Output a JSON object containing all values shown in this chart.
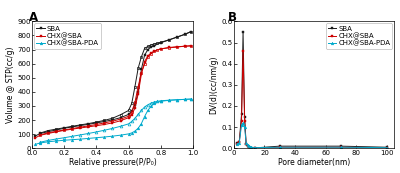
{
  "panel_A": {
    "title": "A",
    "xlabel": "Relative pressure(P/P₀)",
    "ylabel": "Volume @ STP(cc/g)",
    "ylim": [
      0,
      900
    ],
    "xlim": [
      0.0,
      1.0
    ],
    "yticks": [
      0,
      100,
      200,
      300,
      400,
      500,
      600,
      700,
      800,
      900
    ],
    "xticks": [
      0.0,
      0.2,
      0.4,
      0.6,
      0.8,
      1.0
    ],
    "series": {
      "SBA": {
        "color": "#1a1a1a",
        "marker": "s",
        "adsorption_x": [
          0.02,
          0.05,
          0.1,
          0.15,
          0.2,
          0.25,
          0.3,
          0.35,
          0.4,
          0.45,
          0.5,
          0.55,
          0.6,
          0.62,
          0.64,
          0.66,
          0.68,
          0.7,
          0.72,
          0.74,
          0.76,
          0.8,
          0.85,
          0.9,
          0.95,
          0.99
        ],
        "adsorption_y": [
          88,
          105,
          118,
          130,
          142,
          152,
          161,
          170,
          180,
          190,
          202,
          217,
          240,
          262,
          308,
          400,
          560,
          660,
          700,
          718,
          728,
          748,
          768,
          788,
          808,
          828
        ],
        "desorption_x": [
          0.99,
          0.95,
          0.9,
          0.85,
          0.8,
          0.78,
          0.76,
          0.74,
          0.72,
          0.7,
          0.68,
          0.66,
          0.64,
          0.62,
          0.6,
          0.55,
          0.5,
          0.45,
          0.4,
          0.35,
          0.3,
          0.25,
          0.2,
          0.15,
          0.1,
          0.05
        ],
        "desorption_y": [
          828,
          808,
          788,
          768,
          752,
          746,
          740,
          733,
          722,
          708,
          648,
          568,
          438,
          318,
          268,
          238,
          213,
          198,
          186,
          175,
          166,
          156,
          146,
          136,
          126,
          108
        ]
      },
      "CHX@SBA": {
        "color": "#cc0000",
        "marker": "s",
        "adsorption_x": [
          0.02,
          0.05,
          0.1,
          0.15,
          0.2,
          0.25,
          0.3,
          0.35,
          0.4,
          0.45,
          0.5,
          0.55,
          0.6,
          0.62,
          0.64,
          0.66,
          0.68,
          0.7,
          0.72,
          0.74,
          0.76,
          0.8,
          0.85,
          0.9,
          0.95,
          0.99
        ],
        "adsorption_y": [
          75,
          92,
          105,
          117,
          127,
          136,
          144,
          152,
          160,
          169,
          180,
          195,
          217,
          238,
          285,
          385,
          525,
          615,
          655,
          675,
          690,
          705,
          715,
          720,
          724,
          727
        ],
        "desorption_x": [
          0.99,
          0.95,
          0.9,
          0.85,
          0.8,
          0.78,
          0.76,
          0.74,
          0.72,
          0.7,
          0.68,
          0.66,
          0.64,
          0.62,
          0.6,
          0.55,
          0.5,
          0.45,
          0.4,
          0.35,
          0.3,
          0.25,
          0.2,
          0.15,
          0.1,
          0.05
        ],
        "desorption_y": [
          727,
          724,
          718,
          712,
          705,
          698,
          687,
          672,
          647,
          597,
          537,
          437,
          327,
          257,
          227,
          207,
          192,
          180,
          169,
          159,
          150,
          140,
          130,
          120,
          110,
          95
        ]
      },
      "CHX@SBA-PDA": {
        "color": "#00aacc",
        "marker": "^",
        "adsorption_x": [
          0.02,
          0.05,
          0.1,
          0.15,
          0.2,
          0.25,
          0.3,
          0.35,
          0.4,
          0.45,
          0.5,
          0.55,
          0.6,
          0.62,
          0.64,
          0.66,
          0.68,
          0.7,
          0.72,
          0.74,
          0.76,
          0.8,
          0.85,
          0.9,
          0.95,
          0.99
        ],
        "adsorption_y": [
          28,
          38,
          46,
          52,
          57,
          61,
          65,
          70,
          75,
          80,
          86,
          93,
          102,
          109,
          122,
          142,
          175,
          225,
          268,
          298,
          318,
          333,
          340,
          344,
          347,
          349
        ],
        "desorption_x": [
          0.99,
          0.95,
          0.9,
          0.85,
          0.8,
          0.78,
          0.76,
          0.74,
          0.72,
          0.7,
          0.68,
          0.66,
          0.64,
          0.62,
          0.6,
          0.55,
          0.5,
          0.45,
          0.4,
          0.35,
          0.3,
          0.25,
          0.2,
          0.15,
          0.1,
          0.05
        ],
        "desorption_y": [
          349,
          347,
          344,
          341,
          337,
          333,
          328,
          320,
          308,
          293,
          268,
          240,
          213,
          190,
          173,
          156,
          141,
          128,
          116,
          105,
          95,
          85,
          75,
          66,
          56,
          43
        ]
      }
    }
  },
  "panel_B": {
    "title": "B",
    "xlabel": "Pore diameter(nm)",
    "ylabel": "DV(d)(cc/nm/g)",
    "ylim": [
      0,
      0.6
    ],
    "xlim": [
      0,
      105
    ],
    "yticks": [
      0.0,
      0.1,
      0.2,
      0.3,
      0.4,
      0.5,
      0.6
    ],
    "xticks": [
      0,
      20,
      40,
      60,
      80,
      100
    ],
    "series": {
      "SBA": {
        "color": "#1a1a1a",
        "marker": "s",
        "x": [
          2.0,
          3.5,
          5.0,
          6.0,
          7.0,
          8.0,
          9.0,
          10.0,
          11.5,
          14.0,
          30.0,
          70.0,
          100.0
        ],
        "y": [
          0.025,
          0.03,
          0.16,
          0.55,
          0.15,
          0.02,
          0.01,
          0.005,
          0.003,
          0.002,
          0.01,
          0.01,
          0.005
        ]
      },
      "CHX@SBA": {
        "color": "#cc0000",
        "marker": "s",
        "x": [
          2.0,
          3.5,
          5.0,
          6.0,
          7.0,
          8.0,
          9.0,
          10.0,
          11.5,
          14.0,
          30.0,
          70.0,
          100.0
        ],
        "y": [
          0.022,
          0.028,
          0.13,
          0.46,
          0.13,
          0.02,
          0.01,
          0.005,
          0.003,
          0.002,
          0.005,
          0.005,
          0.003
        ]
      },
      "CHX@SBA-PDA": {
        "color": "#00aacc",
        "marker": "^",
        "x": [
          2.0,
          3.5,
          5.0,
          6.0,
          7.0,
          8.0,
          9.0,
          10.0,
          11.5,
          14.0,
          30.0,
          70.0,
          100.0
        ],
        "y": [
          0.02,
          0.025,
          0.11,
          0.12,
          0.1,
          0.025,
          0.015,
          0.01,
          0.005,
          0.003,
          0.005,
          0.005,
          0.003
        ]
      }
    }
  },
  "legend_labels": [
    "SBA",
    "CHX@SBA",
    "CHX@SBA-PDA"
  ],
  "background_color": "#ffffff",
  "font_size": 5.5,
  "label_fontsize": 5.5,
  "tick_fontsize": 5.0,
  "marker_size": 2.0,
  "linewidth": 0.7
}
